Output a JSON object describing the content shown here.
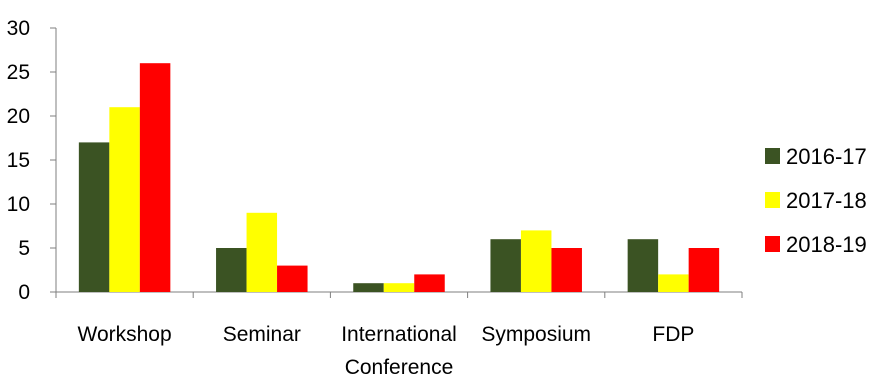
{
  "chart_data": {
    "type": "bar",
    "categories": [
      "Workshop",
      "Seminar",
      "International Conference",
      "Symposium",
      "FDP"
    ],
    "category_label_lines": [
      [
        "Workshop"
      ],
      [
        "Seminar"
      ],
      [
        "International",
        "Conference"
      ],
      [
        "Symposium"
      ],
      [
        "FDP"
      ]
    ],
    "series": [
      {
        "name": "2016-17",
        "color": "#3b5323",
        "values": [
          17,
          5,
          1,
          6,
          6
        ]
      },
      {
        "name": "2017-18",
        "color": "#ffff00",
        "values": [
          21,
          9,
          1,
          7,
          2
        ]
      },
      {
        "name": "2018-19",
        "color": "#ff0000",
        "values": [
          26,
          3,
          2,
          5,
          5
        ]
      }
    ],
    "ylim": [
      0,
      30
    ],
    "yticks": [
      0,
      5,
      10,
      15,
      20,
      25,
      30
    ],
    "grid": false,
    "legend_position": "right",
    "title": "",
    "xlabel": "",
    "ylabel": ""
  }
}
